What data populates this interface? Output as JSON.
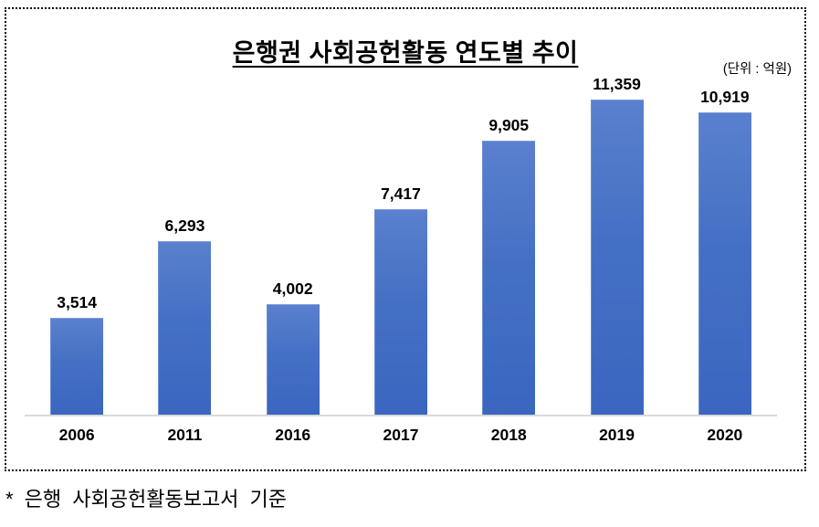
{
  "chart": {
    "title": "은행권 사회공헌활동 연도별 추이",
    "unit_label": "(단위 : 억원)",
    "footnote": "* 은행 사회공헌활동보고서 기준"
  },
  "chart_data": {
    "type": "bar",
    "title": "은행권 사회공헌활동 연도별 추이",
    "unit": "억원",
    "categories": [
      "2006",
      "2011",
      "2016",
      "2017",
      "2018",
      "2019",
      "2020"
    ],
    "values": [
      3514,
      6293,
      4002,
      7417,
      9905,
      11359,
      10919
    ],
    "value_labels": [
      "3,514",
      "6,293",
      "4,002",
      "7,417",
      "9,905",
      "11,359",
      "10,919"
    ],
    "xlabel": "",
    "ylabel": "",
    "ylim": [
      0,
      12000
    ],
    "grid": false,
    "legend_position": "none",
    "bar_color_top": "#5a80ce",
    "bar_color_bottom": "#3b66c0",
    "axis_line_color": "#d9d9d9",
    "border_style": "dotted-black"
  }
}
